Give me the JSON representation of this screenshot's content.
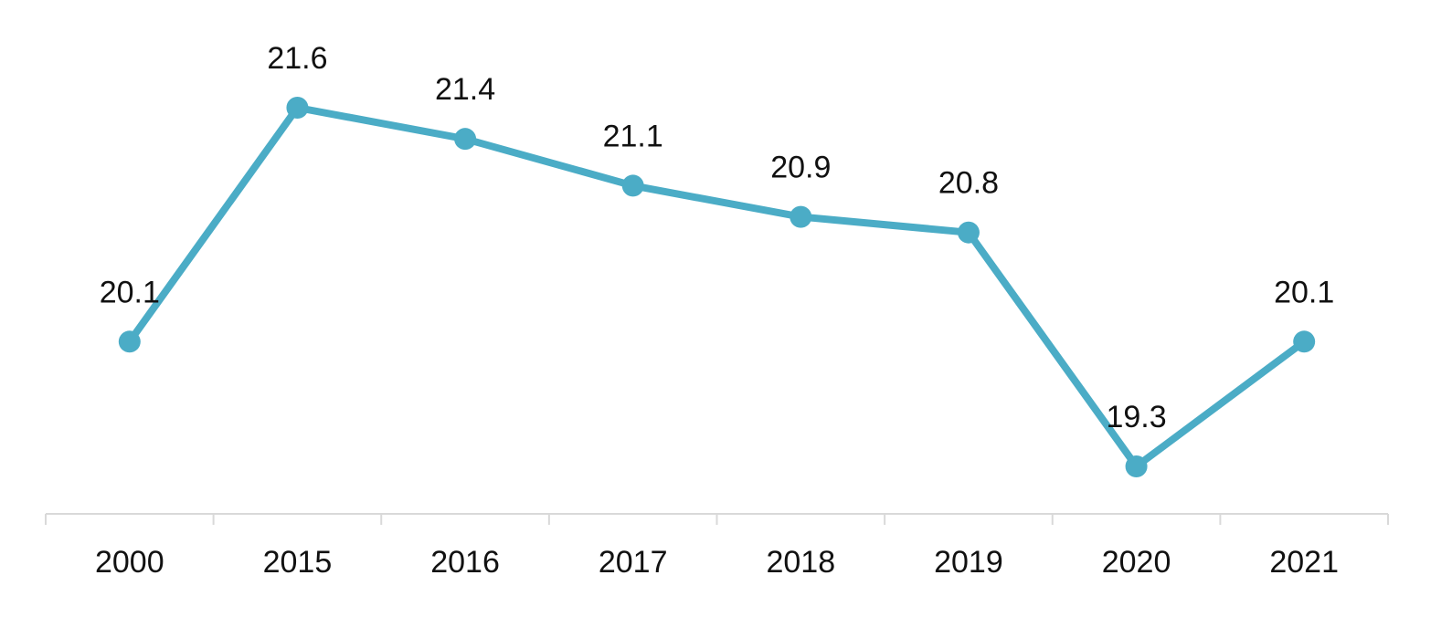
{
  "chart_data": {
    "type": "line",
    "title": "",
    "xlabel": "",
    "ylabel": "",
    "categories": [
      "2000",
      "2015",
      "2016",
      "2017",
      "2018",
      "2019",
      "2020",
      "2021"
    ],
    "series": [
      {
        "values": [
          20.1,
          21.6,
          21.4,
          21.1,
          20.9,
          20.8,
          19.3,
          20.1
        ]
      }
    ],
    "data_labels": [
      "20.1",
      "21.6",
      "21.4",
      "21.1",
      "20.9",
      "20.8",
      "19.3",
      "20.1"
    ],
    "ylim": [
      18.7,
      22.0
    ],
    "grid": false,
    "legend": "none",
    "colors": {
      "line": "#4BACC6",
      "axis": "#D9D9D9",
      "text": "#111111"
    }
  }
}
